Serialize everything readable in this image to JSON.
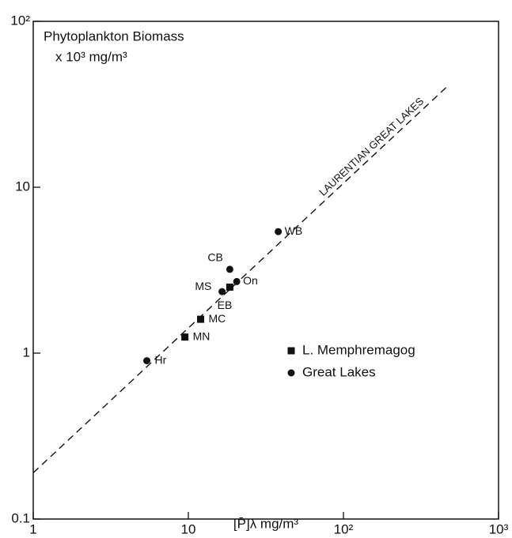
{
  "chart_data": {
    "type": "scatter",
    "log_x": true,
    "log_y": true,
    "title": "Phytoplankton Biomass",
    "y_label": "x 10³ mg/m³",
    "x_label": "[P̄]λ mg/m³",
    "xlim": [
      1,
      1000
    ],
    "ylim": [
      0.1,
      100
    ],
    "xticks": [
      1,
      10,
      {
        "value": 100,
        "label": "10²"
      },
      {
        "value": 1000,
        "label": "10³"
      }
    ],
    "yticks": [
      0.1,
      1,
      10,
      {
        "value": 100,
        "label": "10²"
      }
    ],
    "legend_position": "right",
    "series": [
      {
        "name": "L. Memphremagog",
        "marker": "square",
        "color": "#111111",
        "x": [
          12,
          9.5,
          18.5
        ],
        "values": [
          1.6,
          1.25,
          2.5
        ],
        "labels": [
          "MC",
          "MN",
          "MS"
        ]
      },
      {
        "name": "Great Lakes",
        "marker": "circle",
        "color": "#111111",
        "x": [
          5.4,
          18.5,
          20.5,
          16.5,
          38
        ],
        "values": [
          0.9,
          3.2,
          2.7,
          2.35,
          5.4
        ],
        "labels": [
          "Hr",
          "CB",
          "On",
          "EB",
          "WB"
        ]
      }
    ],
    "fit_line": {
      "label": "LAURENTIAN GREAT LAKES",
      "x": [
        1,
        460
      ],
      "values": [
        0.19,
        40
      ]
    }
  }
}
